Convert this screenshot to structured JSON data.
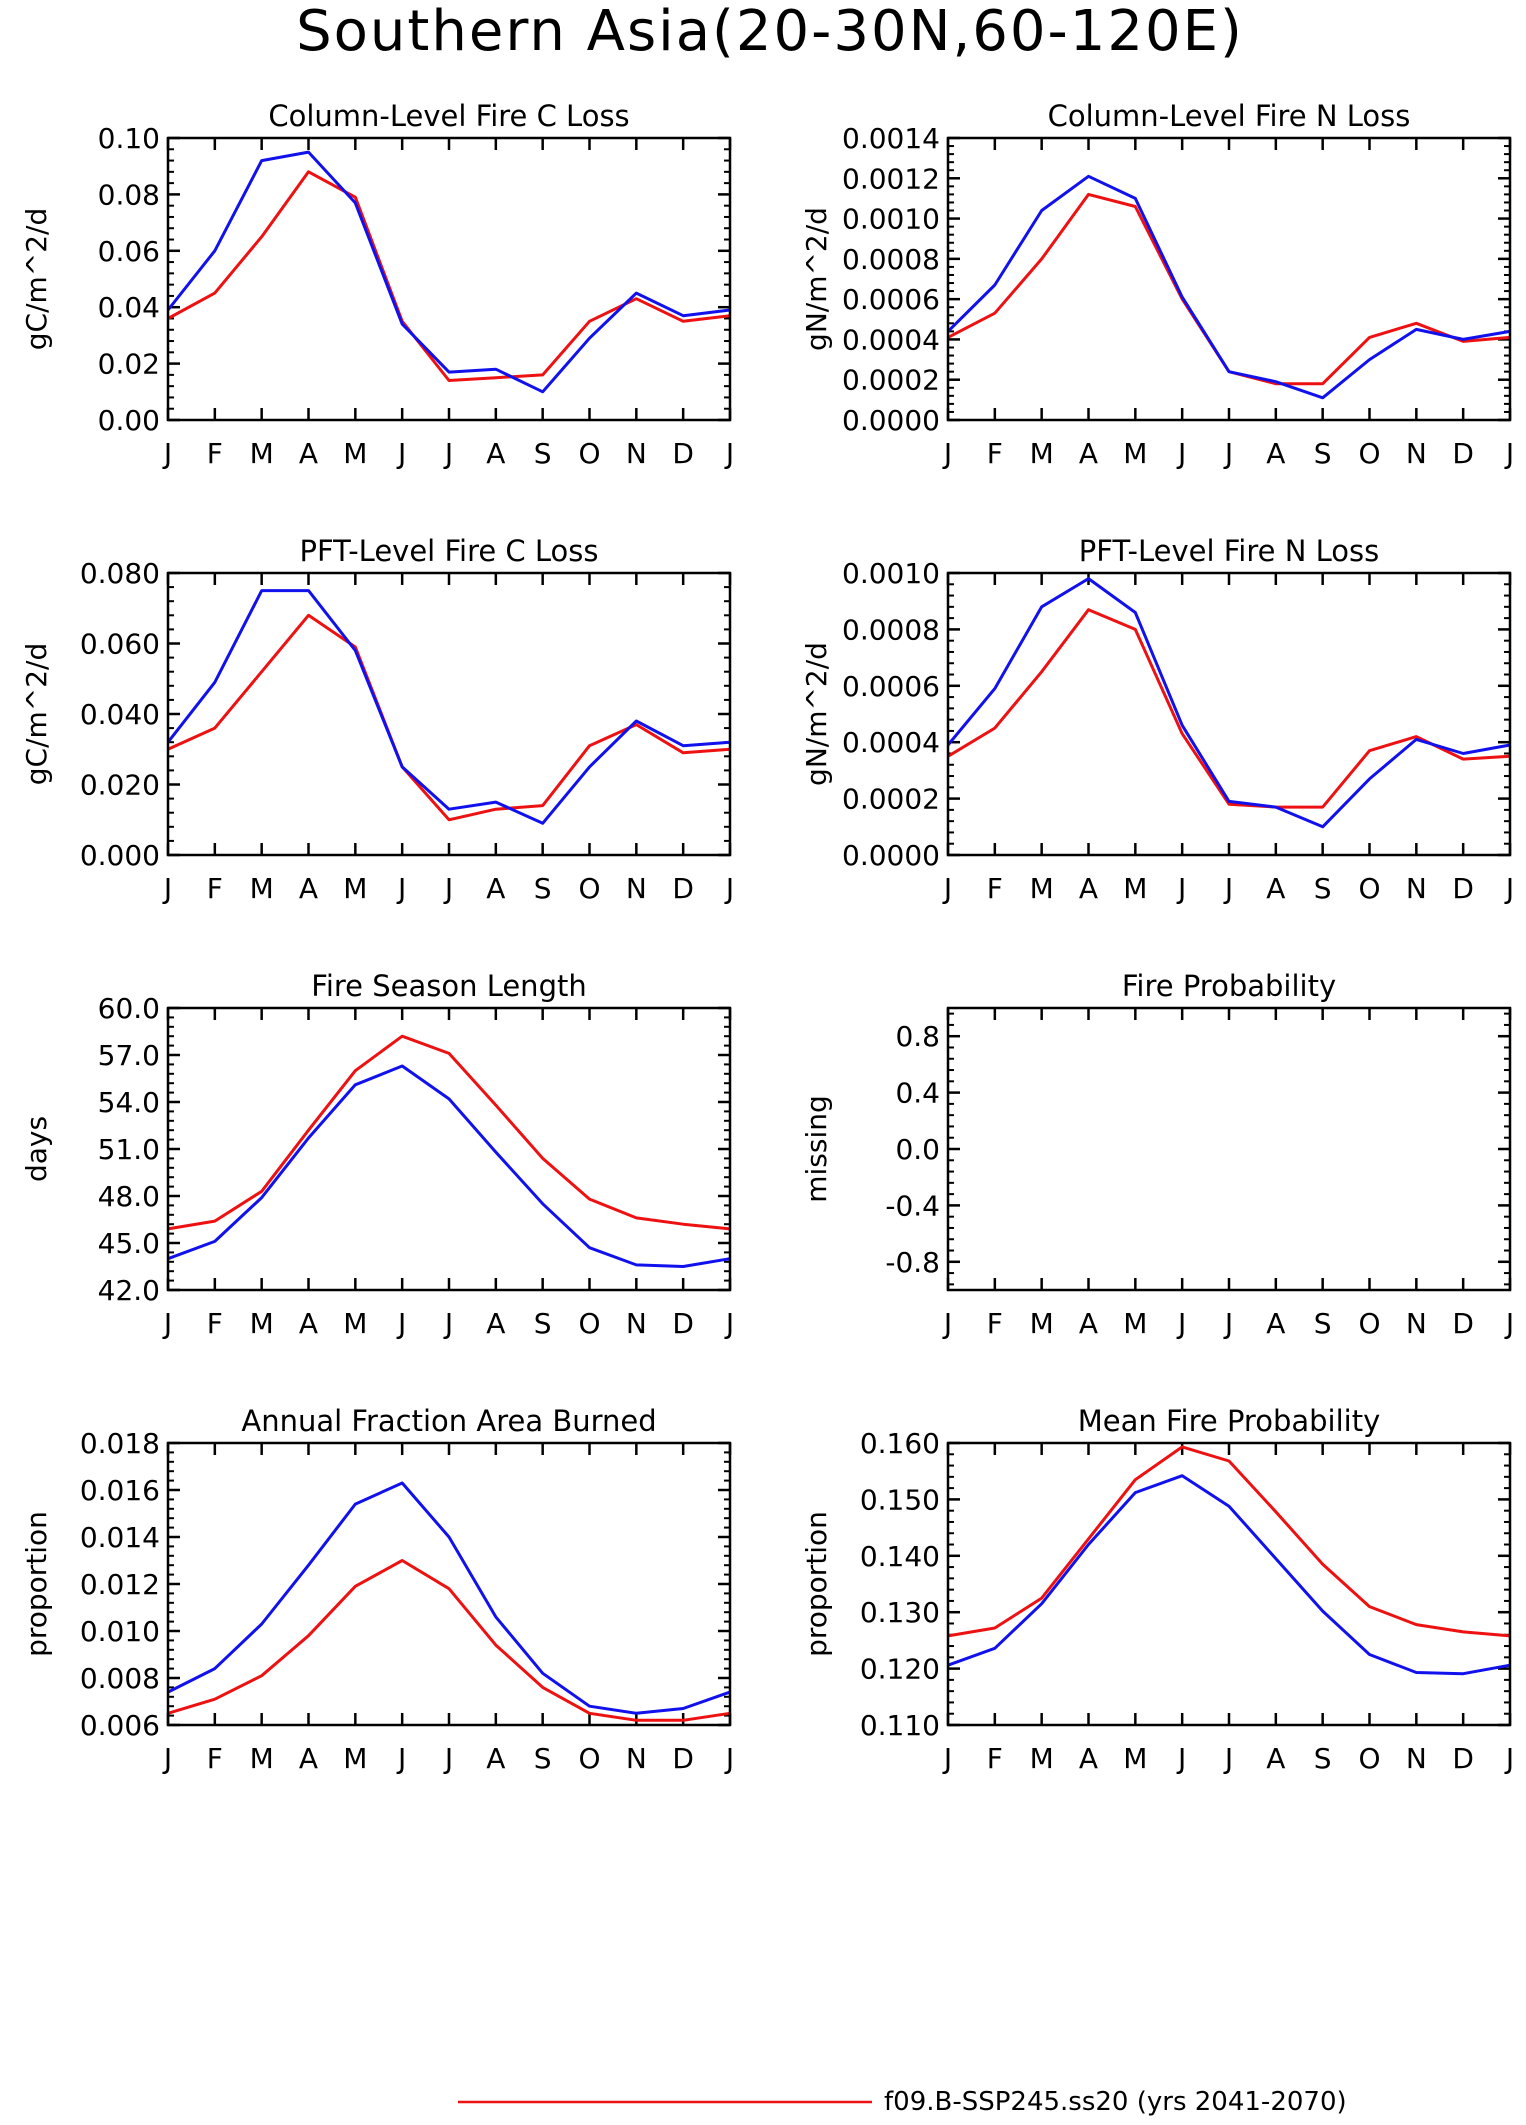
{
  "page_title": "Southern Asia(20-30N,60-120E)",
  "months": [
    "J",
    "F",
    "M",
    "A",
    "M",
    "J",
    "J",
    "A",
    "S",
    "O",
    "N",
    "D",
    "J"
  ],
  "legend": [
    {
      "label": "f09.B-SSP245.ss20 (yrs 2041-2070)",
      "color": "#ee1111"
    }
  ],
  "series_colors": {
    "red": "#ee1111",
    "blue": "#1111ee"
  },
  "chart_data": [
    {
      "type": "line",
      "title": "Column-Level Fire C Loss",
      "ylabel": "gC/m^2/d",
      "ylim": [
        0,
        0.1
      ],
      "yticks": [
        "0.00",
        "0.02",
        "0.04",
        "0.06",
        "0.08",
        "0.10"
      ],
      "categories": [
        "J",
        "F",
        "M",
        "A",
        "M",
        "J",
        "J",
        "A",
        "S",
        "O",
        "N",
        "D",
        "J"
      ],
      "series": [
        {
          "color": "#ee1111",
          "values": [
            0.036,
            0.045,
            0.065,
            0.088,
            0.079,
            0.035,
            0.014,
            0.015,
            0.016,
            0.035,
            0.043,
            0.035,
            0.037
          ]
        },
        {
          "color": "#1111ee",
          "values": [
            0.039,
            0.06,
            0.092,
            0.095,
            0.077,
            0.034,
            0.017,
            0.018,
            0.01,
            0.029,
            0.045,
            0.037,
            0.039
          ]
        }
      ]
    },
    {
      "type": "line",
      "title": "Column-Level Fire N Loss",
      "ylabel": "gN/m^2/d",
      "ylim": [
        0,
        0.0014
      ],
      "yticks": [
        "0.0000",
        "0.0002",
        "0.0004",
        "0.0006",
        "0.0008",
        "0.0010",
        "0.0012",
        "0.0014"
      ],
      "categories": [
        "J",
        "F",
        "M",
        "A",
        "M",
        "J",
        "J",
        "A",
        "S",
        "O",
        "N",
        "D",
        "J"
      ],
      "series": [
        {
          "color": "#ee1111",
          "values": [
            0.00041,
            0.00053,
            0.0008,
            0.00112,
            0.00106,
            0.0006,
            0.00024,
            0.00018,
            0.00018,
            0.00041,
            0.00048,
            0.00039,
            0.00041
          ]
        },
        {
          "color": "#1111ee",
          "values": [
            0.00044,
            0.00067,
            0.00104,
            0.00121,
            0.0011,
            0.00061,
            0.00024,
            0.00019,
            0.00011,
            0.0003,
            0.00045,
            0.0004,
            0.00044
          ]
        }
      ]
    },
    {
      "type": "line",
      "title": "PFT-Level Fire C Loss",
      "ylabel": "gC/m^2/d",
      "ylim": [
        0,
        0.08
      ],
      "yticks": [
        "0.000",
        "0.020",
        "0.040",
        "0.060",
        "0.080"
      ],
      "categories": [
        "J",
        "F",
        "M",
        "A",
        "M",
        "J",
        "J",
        "A",
        "S",
        "O",
        "N",
        "D",
        "J"
      ],
      "series": [
        {
          "color": "#ee1111",
          "values": [
            0.03,
            0.036,
            0.052,
            0.068,
            0.059,
            0.025,
            0.01,
            0.013,
            0.014,
            0.031,
            0.037,
            0.029,
            0.03
          ]
        },
        {
          "color": "#1111ee",
          "values": [
            0.032,
            0.049,
            0.075,
            0.075,
            0.058,
            0.025,
            0.013,
            0.015,
            0.009,
            0.025,
            0.038,
            0.031,
            0.032
          ]
        }
      ]
    },
    {
      "type": "line",
      "title": "PFT-Level Fire N Loss",
      "ylabel": "gN/m^2/d",
      "ylim": [
        0,
        0.001
      ],
      "yticks": [
        "0.0000",
        "0.0002",
        "0.0004",
        "0.0006",
        "0.0008",
        "0.0010"
      ],
      "categories": [
        "J",
        "F",
        "M",
        "A",
        "M",
        "J",
        "J",
        "A",
        "S",
        "O",
        "N",
        "D",
        "J"
      ],
      "series": [
        {
          "color": "#ee1111",
          "values": [
            0.00035,
            0.00045,
            0.00065,
            0.00087,
            0.0008,
            0.00043,
            0.00018,
            0.00017,
            0.00017,
            0.00037,
            0.00042,
            0.00034,
            0.00035
          ]
        },
        {
          "color": "#1111ee",
          "values": [
            0.00039,
            0.00059,
            0.00088,
            0.00098,
            0.00086,
            0.00046,
            0.00019,
            0.00017,
            0.0001,
            0.00027,
            0.00041,
            0.00036,
            0.00039
          ]
        }
      ]
    },
    {
      "type": "line",
      "title": "Fire Season Length",
      "ylabel": "days",
      "ylim": [
        42,
        60
      ],
      "yticks": [
        "42.0",
        "45.0",
        "48.0",
        "51.0",
        "54.0",
        "57.0",
        "60.0"
      ],
      "categories": [
        "J",
        "F",
        "M",
        "A",
        "M",
        "J",
        "J",
        "A",
        "S",
        "O",
        "N",
        "D",
        "J"
      ],
      "series": [
        {
          "color": "#ee1111",
          "values": [
            45.9,
            46.4,
            48.3,
            52.2,
            56.0,
            58.2,
            57.1,
            53.8,
            50.4,
            47.8,
            46.6,
            46.2,
            45.9
          ]
        },
        {
          "color": "#1111ee",
          "values": [
            44.0,
            45.1,
            47.9,
            51.7,
            55.1,
            56.3,
            54.2,
            50.8,
            47.5,
            44.7,
            43.6,
            43.5,
            44.0
          ]
        }
      ]
    },
    {
      "type": "line",
      "title": "Fire Probability",
      "ylabel": "missing",
      "ylim": [
        -1,
        1
      ],
      "yticks": [
        "-0.8",
        "-0.4",
        "0.0",
        "0.4",
        "0.8"
      ],
      "categories": [
        "J",
        "F",
        "M",
        "A",
        "M",
        "J",
        "J",
        "A",
        "S",
        "O",
        "N",
        "D",
        "J"
      ],
      "series": []
    },
    {
      "type": "line",
      "title": "Annual Fraction Area Burned",
      "ylabel": "proportion",
      "ylim": [
        0.006,
        0.018
      ],
      "yticks": [
        "0.006",
        "0.008",
        "0.010",
        "0.012",
        "0.014",
        "0.016",
        "0.018"
      ],
      "categories": [
        "J",
        "F",
        "M",
        "A",
        "M",
        "J",
        "J",
        "A",
        "S",
        "O",
        "N",
        "D",
        "J"
      ],
      "series": [
        {
          "color": "#ee1111",
          "values": [
            0.0065,
            0.0071,
            0.0081,
            0.0098,
            0.0119,
            0.013,
            0.0118,
            0.0094,
            0.0076,
            0.0065,
            0.0062,
            0.0062,
            0.0065
          ]
        },
        {
          "color": "#1111ee",
          "values": [
            0.0074,
            0.0084,
            0.0103,
            0.0128,
            0.0154,
            0.0163,
            0.014,
            0.0106,
            0.0082,
            0.0068,
            0.0065,
            0.0067,
            0.0074
          ]
        }
      ]
    },
    {
      "type": "line",
      "title": "Mean Fire Probability",
      "ylabel": "proportion",
      "ylim": [
        0.11,
        0.16
      ],
      "yticks": [
        "0.110",
        "0.120",
        "0.130",
        "0.140",
        "0.150",
        "0.160"
      ],
      "categories": [
        "J",
        "F",
        "M",
        "A",
        "M",
        "J",
        "J",
        "A",
        "S",
        "O",
        "N",
        "D",
        "J"
      ],
      "series": [
        {
          "color": "#ee1111",
          "values": [
            0.1258,
            0.1272,
            0.1325,
            0.143,
            0.1535,
            0.1593,
            0.1568,
            0.1478,
            0.1385,
            0.131,
            0.1278,
            0.1265,
            0.1258
          ]
        },
        {
          "color": "#1111ee",
          "values": [
            0.1206,
            0.1236,
            0.1315,
            0.142,
            0.1512,
            0.1542,
            0.1488,
            0.1395,
            0.1302,
            0.1225,
            0.1193,
            0.1191,
            0.1206
          ]
        }
      ]
    }
  ]
}
